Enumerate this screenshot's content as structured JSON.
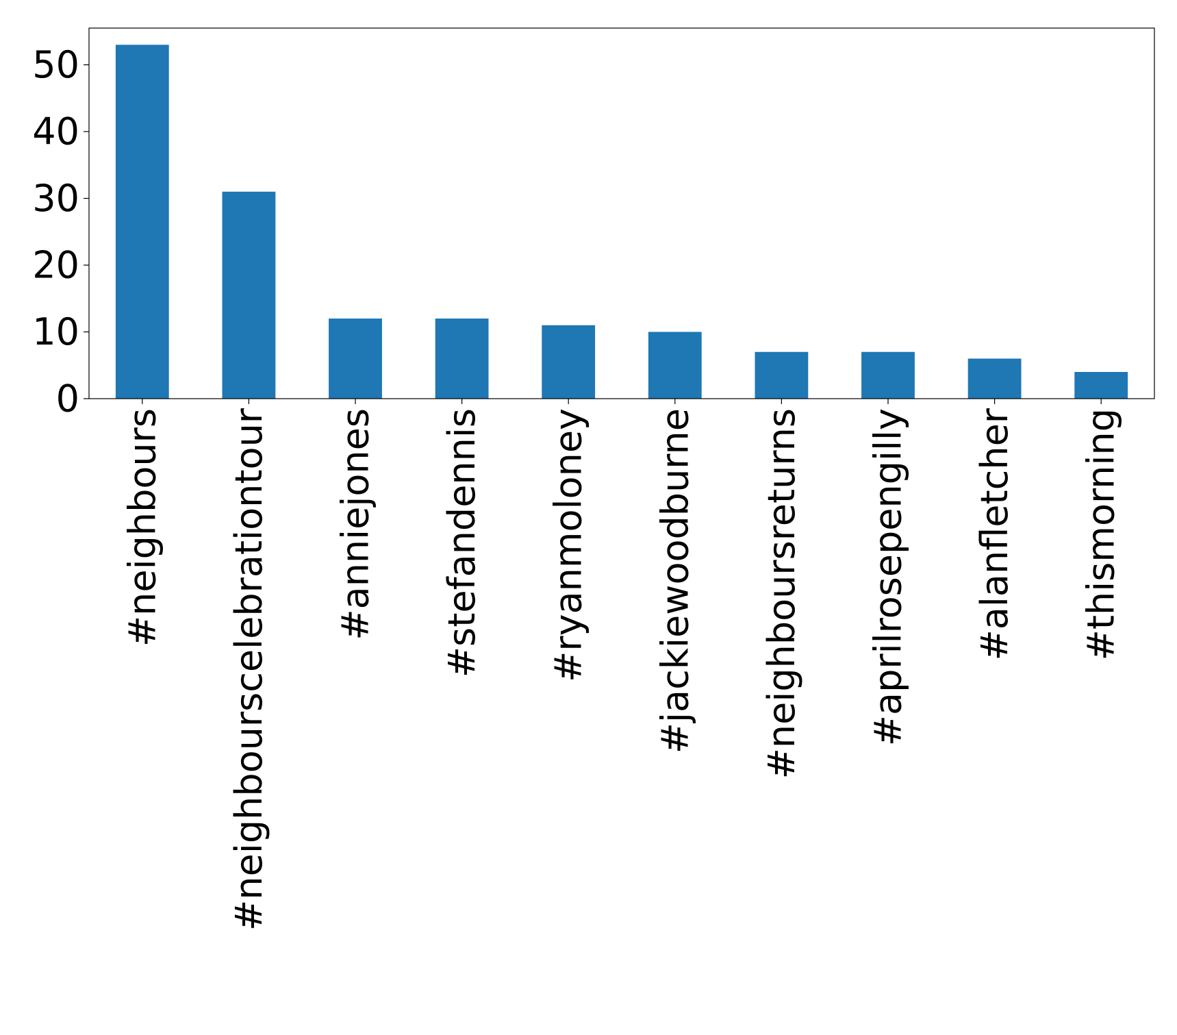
{
  "chart_data": {
    "type": "bar",
    "categories": [
      "#neighbours",
      "#neighbourscelebrationtour",
      "#anniejones",
      "#stefandennis",
      "#ryanmoloney",
      "#jackiewoodburne",
      "#neighboursreturns",
      "#aprilrosepengilly",
      "#alanfletcher",
      "#thismorning"
    ],
    "values": [
      53,
      31,
      12,
      12,
      11,
      10,
      7,
      7,
      6,
      4
    ],
    "yticks": [
      "0",
      "10",
      "20",
      "30",
      "40",
      "50"
    ],
    "ylim": [
      0,
      55.5
    ],
    "bar_color": "#1f77b4",
    "grid": false,
    "legend": "none"
  }
}
